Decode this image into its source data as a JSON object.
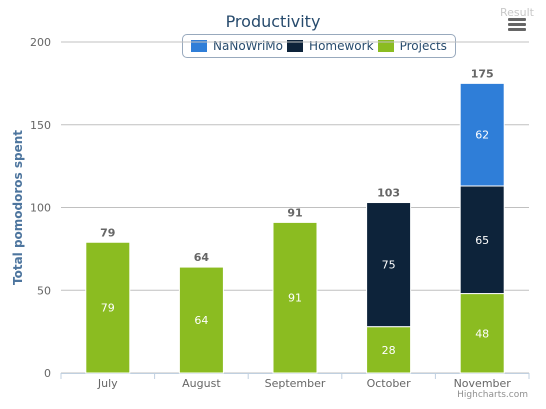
{
  "result_label": "Result",
  "credits": "Highcharts.com",
  "colors": {
    "nanowrimo": "#2f7ed8",
    "homework": "#0d233a",
    "projects": "#8bbc21",
    "title": "#274b6d",
    "axis_label": "#4d759e",
    "grid": "#c0c0c0",
    "total_label": "#666666"
  },
  "chart_data": {
    "type": "bar",
    "stacked": true,
    "title": "Productivity",
    "ylabel": "Total pomodoros spent",
    "xlabel": "",
    "ylim": [
      0,
      200
    ],
    "yticks": [
      0,
      50,
      100,
      150,
      200
    ],
    "categories": [
      "July",
      "August",
      "September",
      "October",
      "November"
    ],
    "series": [
      {
        "name": "NaNoWriMo",
        "color": "#2f7ed8",
        "values": [
          0,
          0,
          0,
          0,
          62
        ]
      },
      {
        "name": "Homework",
        "color": "#0d233a",
        "values": [
          0,
          0,
          0,
          75,
          65
        ]
      },
      {
        "name": "Projects",
        "color": "#8bbc21",
        "values": [
          79,
          64,
          91,
          28,
          48
        ]
      }
    ],
    "stack_order": [
      "Projects",
      "Homework",
      "NaNoWriMo"
    ],
    "totals": [
      79,
      64,
      91,
      103,
      175
    ],
    "legend": "top-center",
    "grid": true
  }
}
